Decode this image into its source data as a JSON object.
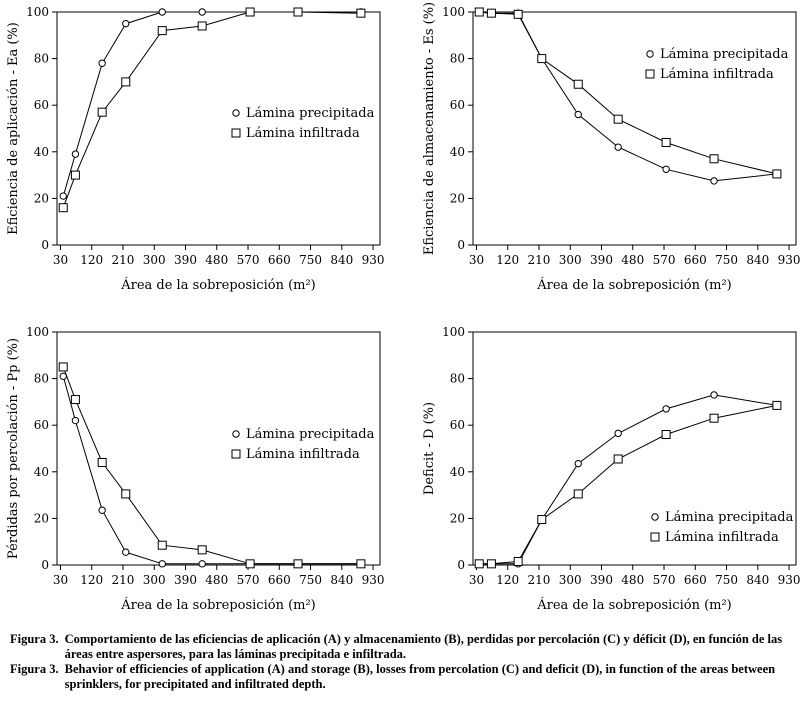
{
  "chart_data": [
    {
      "id": "A",
      "type": "line",
      "xlabel": "Área de la sobreposición (m²)",
      "ylabel": "Eficiencia de aplicación - Ea (%)",
      "xticks": [
        30,
        120,
        210,
        300,
        390,
        480,
        570,
        660,
        750,
        840,
        930
      ],
      "xlim": [
        20,
        950
      ],
      "yticks": [
        0,
        20,
        40,
        60,
        80,
        100
      ],
      "ylim": [
        0,
        100
      ],
      "legend_position": "right",
      "series": [
        {
          "name": "Lámina precipitada",
          "marker": "circle",
          "x": [
            38,
            73,
            150,
            218,
            323,
            438,
            576,
            714,
            895
          ],
          "y": [
            21,
            39,
            78,
            95,
            100,
            100,
            100,
            100,
            100
          ]
        },
        {
          "name": "Lámina infiltrada",
          "marker": "square",
          "x": [
            38,
            73,
            150,
            218,
            323,
            438,
            576,
            714,
            895
          ],
          "y": [
            16,
            30,
            57,
            70,
            92,
            94,
            100,
            100,
            99.5
          ]
        }
      ]
    },
    {
      "id": "B",
      "type": "line",
      "xlabel": "Área de la sobreposición (m²)",
      "ylabel": "Eficiencia de almacenamiento - Es (%)",
      "xticks": [
        30,
        120,
        210,
        300,
        390,
        480,
        570,
        660,
        750,
        840,
        930
      ],
      "xlim": [
        20,
        950
      ],
      "yticks": [
        0,
        20,
        40,
        60,
        80,
        100
      ],
      "ylim": [
        0,
        100
      ],
      "legend_position": "top-right",
      "series": [
        {
          "name": "Lámina precipitada",
          "marker": "circle",
          "x": [
            38,
            73,
            150,
            218,
            323,
            438,
            576,
            714,
            895
          ],
          "y": [
            100,
            99.5,
            99.5,
            80,
            56,
            42,
            32.5,
            27.5,
            30.5
          ]
        },
        {
          "name": "Lámina infiltrada",
          "marker": "square",
          "x": [
            38,
            73,
            150,
            218,
            323,
            438,
            576,
            714,
            895
          ],
          "y": [
            100,
            99.5,
            99,
            80,
            69,
            54,
            44,
            37,
            30.5
          ]
        }
      ]
    },
    {
      "id": "C",
      "type": "line",
      "xlabel": "Área de la sobreposición (m²)",
      "ylabel": "Pérdidas por percolación - Pp (%)",
      "xticks": [
        30,
        120,
        210,
        300,
        390,
        480,
        570,
        660,
        750,
        840,
        930
      ],
      "xlim": [
        20,
        950
      ],
      "yticks": [
        0,
        20,
        40,
        60,
        80,
        100
      ],
      "ylim": [
        0,
        100
      ],
      "legend_position": "right",
      "series": [
        {
          "name": "Lámina precipitada",
          "marker": "circle",
          "x": [
            38,
            73,
            150,
            218,
            323,
            438,
            576,
            714,
            895
          ],
          "y": [
            81,
            62,
            23.5,
            5.5,
            0.5,
            0.5,
            0.5,
            0.5,
            0.5
          ]
        },
        {
          "name": "Lámina infiltrada",
          "marker": "square",
          "x": [
            38,
            73,
            150,
            218,
            323,
            438,
            576,
            714,
            895
          ],
          "y": [
            85,
            71,
            44,
            30.5,
            8.5,
            6.5,
            0.5,
            0.5,
            0.5
          ]
        }
      ]
    },
    {
      "id": "D",
      "type": "line",
      "xlabel": "Área de la sobreposición (m²)",
      "ylabel": "Deficit - D (%)",
      "xticks": [
        30,
        120,
        210,
        300,
        390,
        480,
        570,
        660,
        750,
        840,
        930
      ],
      "xlim": [
        20,
        950
      ],
      "yticks": [
        0,
        20,
        40,
        60,
        80,
        100
      ],
      "ylim": [
        0,
        100
      ],
      "legend_position": "bottom-right",
      "series": [
        {
          "name": "Lámina precipitada",
          "marker": "circle",
          "x": [
            38,
            73,
            150,
            218,
            323,
            438,
            576,
            714,
            895
          ],
          "y": [
            0.5,
            0.5,
            0.5,
            19.5,
            43.5,
            56.5,
            67,
            73,
            68.5
          ]
        },
        {
          "name": "Lámina infiltrada",
          "marker": "square",
          "x": [
            38,
            73,
            150,
            218,
            323,
            438,
            576,
            714,
            895
          ],
          "y": [
            0.5,
            0.5,
            1.5,
            19.5,
            30.5,
            45.5,
            56,
            63,
            68.5
          ]
        }
      ]
    }
  ],
  "caption": {
    "es_label": "Figura 3.",
    "es_text": "Comportamiento de las eficiencias de aplicación (A) y almacenamiento (B), perdidas por percolación (C) y déficit (D), en función de las áreas entre aspersores, para las láminas precipitada e infiltrada.",
    "en_label": "Figura 3.",
    "en_text": "Behavior of efficiencies of application (A) and storage (B), losses from percolation (C) and deficit (D), in function of the areas between sprinklers, for precipitated and infiltrated depth."
  }
}
